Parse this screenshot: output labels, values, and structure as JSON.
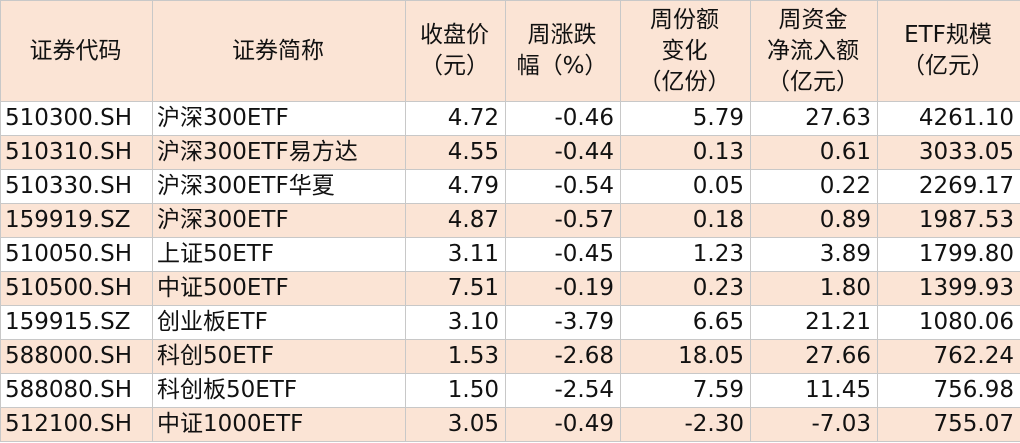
{
  "table": {
    "header": [
      [
        "证券代码"
      ],
      [
        "证券简称"
      ],
      [
        "收盘价",
        "（元）"
      ],
      [
        "周涨跌",
        "幅（%）"
      ],
      [
        "周份额",
        "变化",
        "（亿份）"
      ],
      [
        "周资金",
        "净流入额",
        "（亿元）"
      ],
      [
        "ETF规模",
        "（亿元）"
      ]
    ],
    "rows": [
      [
        "510300.SH",
        "沪深300ETF",
        "4.72",
        "-0.46",
        "5.79",
        "27.63",
        "4261.10"
      ],
      [
        "510310.SH",
        "沪深300ETF易方达",
        "4.55",
        "-0.44",
        "0.13",
        "0.61",
        "3033.05"
      ],
      [
        "510330.SH",
        "沪深300ETF华夏",
        "4.79",
        "-0.54",
        "0.05",
        "0.22",
        "2269.17"
      ],
      [
        "159919.SZ",
        "沪深300ETF",
        "4.87",
        "-0.57",
        "0.18",
        "0.89",
        "1987.53"
      ],
      [
        "510050.SH",
        "上证50ETF",
        "3.11",
        "-0.45",
        "1.23",
        "3.89",
        "1799.80"
      ],
      [
        "510500.SH",
        "中证500ETF",
        "7.51",
        "-0.19",
        "0.23",
        "1.80",
        "1399.93"
      ],
      [
        "159915.SZ",
        "创业板ETF",
        "3.10",
        "-3.79",
        "6.65",
        "21.21",
        "1080.06"
      ],
      [
        "588000.SH",
        "科创50ETF",
        "1.53",
        "-2.68",
        "18.05",
        "27.66",
        "762.24"
      ],
      [
        "588080.SH",
        "科创板50ETF",
        "1.50",
        "-2.54",
        "7.59",
        "11.45",
        "756.98"
      ],
      [
        "512100.SH",
        "中证1000ETF",
        "3.05",
        "-0.49",
        "-2.30",
        "-7.03",
        "755.07"
      ]
    ]
  }
}
